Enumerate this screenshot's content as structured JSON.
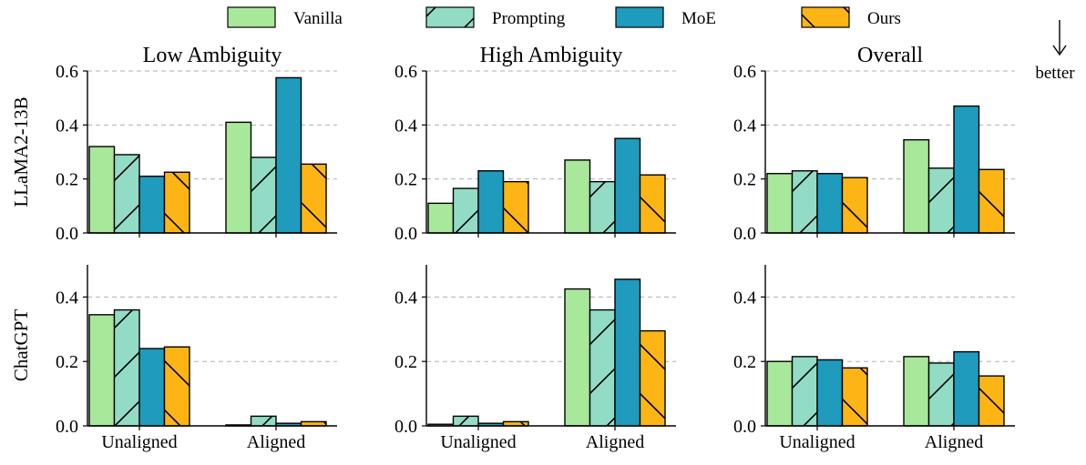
{
  "chart_data": {
    "type": "bar",
    "legend": {
      "placement": "top-center",
      "entries": [
        "Vanilla",
        "Prompting",
        "MoE",
        "Ours"
      ]
    },
    "series_colors": {
      "Vanilla": "#a8e89a",
      "Prompting": "#92dcc6",
      "MoE": "#1f9bbd",
      "Ours": "#fdb515"
    },
    "series_hatch": {
      "Vanilla": "none",
      "Prompting": "/",
      "MoE": "none",
      "Ours": "\\"
    },
    "categories": [
      "Unaligned",
      "Aligned"
    ],
    "columns": [
      "Low Ambiguity",
      "High Ambiguity",
      "Overall"
    ],
    "rows": [
      "LLaMA2-13B",
      "ChatGPT"
    ],
    "annotation": "better",
    "panels": [
      {
        "row": "LLaMA2-13B",
        "title": "Low Ambiguity",
        "ylim": [
          0,
          0.6
        ],
        "yticks": [
          "0.0",
          "0.2",
          "0.4",
          "0.6"
        ],
        "series": [
          {
            "name": "Vanilla",
            "values": [
              0.32,
              0.41
            ]
          },
          {
            "name": "Prompting",
            "values": [
              0.29,
              0.28
            ]
          },
          {
            "name": "MoE",
            "values": [
              0.21,
              0.575
            ]
          },
          {
            "name": "Ours",
            "values": [
              0.225,
              0.255
            ]
          }
        ]
      },
      {
        "row": "LLaMA2-13B",
        "title": "High Ambiguity",
        "ylim": [
          0,
          0.6
        ],
        "yticks": [
          "0.0",
          "0.2",
          "0.4",
          "0.6"
        ],
        "series": [
          {
            "name": "Vanilla",
            "values": [
              0.11,
              0.27
            ]
          },
          {
            "name": "Prompting",
            "values": [
              0.165,
              0.19
            ]
          },
          {
            "name": "MoE",
            "values": [
              0.23,
              0.35
            ]
          },
          {
            "name": "Ours",
            "values": [
              0.19,
              0.215
            ]
          }
        ]
      },
      {
        "row": "LLaMA2-13B",
        "title": "Overall",
        "ylim": [
          0,
          0.6
        ],
        "yticks": [
          "0.0",
          "0.2",
          "0.4",
          "0.6"
        ],
        "series": [
          {
            "name": "Vanilla",
            "values": [
              0.22,
              0.345
            ]
          },
          {
            "name": "Prompting",
            "values": [
              0.23,
              0.24
            ]
          },
          {
            "name": "MoE",
            "values": [
              0.22,
              0.47
            ]
          },
          {
            "name": "Ours",
            "values": [
              0.205,
              0.235
            ]
          }
        ]
      },
      {
        "row": "ChatGPT",
        "title": "",
        "ylim": [
          0,
          0.5
        ],
        "yticks": [
          "0.0",
          "0.2",
          "0.4"
        ],
        "series": [
          {
            "name": "Vanilla",
            "values": [
              0.345,
              0.003
            ]
          },
          {
            "name": "Prompting",
            "values": [
              0.36,
              0.03
            ]
          },
          {
            "name": "MoE",
            "values": [
              0.24,
              0.008
            ]
          },
          {
            "name": "Ours",
            "values": [
              0.245,
              0.013
            ]
          }
        ]
      },
      {
        "row": "ChatGPT",
        "title": "",
        "ylim": [
          0,
          0.5
        ],
        "yticks": [
          "0.0",
          "0.2",
          "0.4"
        ],
        "series": [
          {
            "name": "Vanilla",
            "values": [
              0.005,
              0.425
            ]
          },
          {
            "name": "Prompting",
            "values": [
              0.03,
              0.36
            ]
          },
          {
            "name": "MoE",
            "values": [
              0.008,
              0.455
            ]
          },
          {
            "name": "Ours",
            "values": [
              0.013,
              0.295
            ]
          }
        ]
      },
      {
        "row": "ChatGPT",
        "title": "",
        "ylim": [
          0,
          0.5
        ],
        "yticks": [
          "0.0",
          "0.2",
          "0.4"
        ],
        "series": [
          {
            "name": "Vanilla",
            "values": [
              0.2,
              0.215
            ]
          },
          {
            "name": "Prompting",
            "values": [
              0.215,
              0.195
            ]
          },
          {
            "name": "MoE",
            "values": [
              0.205,
              0.23
            ]
          },
          {
            "name": "Ours",
            "values": [
              0.18,
              0.155
            ]
          }
        ]
      }
    ]
  }
}
